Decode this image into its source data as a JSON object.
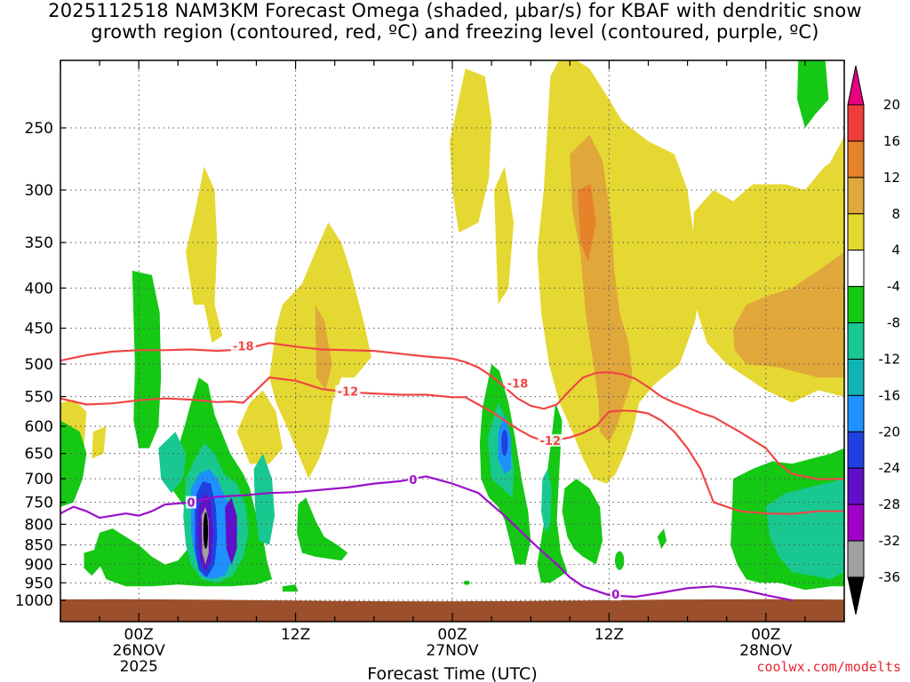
{
  "title": {
    "line1": "2025112518 NAM3KM Forecast Omega (shaded, µbar/s) for KBAF with dendritic snow",
    "line2": "growth region (contoured, red, ºC) and freezing level (contoured, purple, ºC)"
  },
  "credit": "coolwx.com/modelts",
  "chart_data": {
    "type": "heatmap",
    "title": "2025112518 NAM3KM Forecast Omega (shaded, µbar/s) for KBAF with dendritic snow growth region (contoured, red, ºC) and freezing level (contoured, purple, ºC)",
    "xlabel": "Forecast Time (UTC)",
    "ylabel": "",
    "x_range_hours": [
      -6,
      54
    ],
    "y_range_hpa": [
      1000,
      200
    ],
    "y_scale": "log",
    "y_ticks": [
      250,
      300,
      350,
      400,
      450,
      500,
      550,
      600,
      650,
      700,
      750,
      800,
      850,
      900,
      950,
      1000
    ],
    "x_ticks": [
      {
        "hour": 0,
        "lines": [
          "00Z",
          "26NOV",
          "2025"
        ]
      },
      {
        "hour": 12,
        "lines": [
          "12Z"
        ]
      },
      {
        "hour": 24,
        "lines": [
          "00Z",
          "27NOV"
        ]
      },
      {
        "hour": 36,
        "lines": [
          "12Z"
        ]
      },
      {
        "hour": 48,
        "lines": [
          "00Z",
          "28NOV"
        ]
      }
    ],
    "grid": true,
    "colorbar": {
      "levels": [
        20,
        16,
        12,
        8,
        4,
        -4,
        -8,
        -12,
        -16,
        -20,
        -24,
        -28,
        -32,
        -36
      ],
      "bands": [
        {
          "from": 16,
          "to": 20,
          "color": "#f03c3c"
        },
        {
          "from": 12,
          "to": 16,
          "color": "#e6822a"
        },
        {
          "from": 8,
          "to": 12,
          "color": "#e0a83a"
        },
        {
          "from": 4,
          "to": 8,
          "color": "#e6d832"
        },
        {
          "from": -4,
          "to": 4,
          "color": "#ffffff"
        },
        {
          "from": -8,
          "to": -4,
          "color": "#14c814"
        },
        {
          "from": -12,
          "to": -8,
          "color": "#18c890"
        },
        {
          "from": -16,
          "to": -12,
          "color": "#10b4b4"
        },
        {
          "from": -20,
          "to": -16,
          "color": "#1e90ff"
        },
        {
          "from": -24,
          "to": -20,
          "color": "#2040e0"
        },
        {
          "from": -28,
          "to": -24,
          "color": "#6010c8"
        },
        {
          "from": -32,
          "to": -28,
          "color": "#a000c8"
        },
        {
          "from": -36,
          "to": -32,
          "color": "#a0a0a0"
        }
      ],
      "top_arrow_color": "#e6007e",
      "bottom_arrow_color": "#000000"
    },
    "ground_color": "#9b4f2b",
    "shaded_regions": [
      {
        "name": "upward-cell-26nov-06z",
        "value_range": [
          -8,
          -4
        ],
        "color": "#14c814",
        "t": [
          -2,
          10
        ],
        "p": [
          490,
          975
        ]
      },
      {
        "name": "upward-core-26nov-06z",
        "value_range": [
          -36,
          -20
        ],
        "color": "#2040e0",
        "t": [
          4.5,
          8
        ],
        "p": [
          680,
          930
        ]
      },
      {
        "name": "subsidence-26nov-14z",
        "value_range": [
          4,
          8
        ],
        "color": "#e6d832",
        "t": [
          10,
          18
        ],
        "p": [
          345,
          730
        ]
      },
      {
        "name": "upward-cell-27nov-04z",
        "value_range": [
          -20,
          -4
        ],
        "color": "#1e90ff",
        "t": [
          26,
          31
        ],
        "p": [
          490,
          960
        ]
      },
      {
        "name": "subsidence-27nov-12z",
        "value_range": [
          4,
          16
        ],
        "color": "#e6822a",
        "t": [
          31,
          41
        ],
        "p": [
          215,
          700
        ]
      },
      {
        "name": "subsidence-28nov",
        "value_range": [
          4,
          12
        ],
        "color": "#e0a83a",
        "t": [
          42,
          54
        ],
        "p": [
          290,
          560
        ]
      },
      {
        "name": "upward-28nov-low",
        "value_range": [
          -12,
          -4
        ],
        "color": "#18c890",
        "t": [
          45,
          54
        ],
        "p": [
          660,
          955
        ]
      }
    ],
    "series": [
      {
        "name": "-18C isotherm (dendritic growth top)",
        "color": "#f04646",
        "label": "-18",
        "x": [
          -6,
          -4,
          -2,
          0,
          2,
          4,
          6,
          8,
          10,
          12,
          14,
          16,
          18,
          20,
          22,
          24,
          25,
          26,
          27,
          28,
          29,
          30,
          31,
          32,
          33,
          34,
          35,
          36,
          37,
          38,
          39,
          40,
          41,
          42,
          43,
          44,
          46,
          48,
          49,
          50,
          52,
          54
        ],
        "y": [
          495,
          487,
          482,
          480,
          480,
          479,
          481,
          479,
          470,
          475,
          479,
          480,
          481,
          485,
          489,
          492,
          497,
          505,
          518,
          535,
          553,
          565,
          570,
          563,
          540,
          520,
          513,
          512,
          515,
          522,
          535,
          550,
          560,
          568,
          577,
          584,
          610,
          640,
          670,
          690,
          701,
          700
        ]
      },
      {
        "name": "-12C isotherm (dendritic growth bottom)",
        "color": "#f04646",
        "label": "-12",
        "x": [
          -6,
          -4,
          -2,
          0,
          2,
          4,
          6,
          7,
          8,
          10,
          12,
          14,
          16,
          18,
          20,
          22,
          24,
          25,
          26,
          27,
          28,
          29,
          30,
          31,
          32,
          33,
          34,
          35,
          36,
          37,
          38,
          39,
          40,
          41,
          42,
          43,
          44,
          45,
          46,
          48,
          50,
          52,
          54
        ],
        "y": [
          553,
          563,
          561,
          556,
          553,
          555,
          559,
          558,
          560,
          520,
          525,
          538,
          543,
          545,
          547,
          547,
          551,
          551,
          563,
          575,
          590,
          605,
          618,
          627,
          625,
          620,
          612,
          600,
          575,
          573,
          574,
          578,
          590,
          610,
          640,
          680,
          750,
          760,
          770,
          775,
          776,
          770,
          770
        ]
      },
      {
        "name": "0C isotherm (freezing level)",
        "color": "#9a10c8",
        "label": "0",
        "x": [
          -6,
          -5,
          -4,
          -3,
          -2,
          -1,
          0,
          1,
          2,
          4,
          6,
          8,
          10,
          12,
          14,
          16,
          18,
          20,
          22,
          24,
          25,
          26,
          27,
          28,
          29,
          30,
          31,
          32,
          33,
          34,
          36,
          38,
          40,
          42,
          44,
          46,
          48,
          50
        ],
        "y": [
          775,
          760,
          770,
          785,
          780,
          775,
          780,
          770,
          755,
          750,
          738,
          735,
          730,
          728,
          723,
          718,
          710,
          705,
          695,
          710,
          720,
          730,
          755,
          780,
          810,
          840,
          870,
          900,
          935,
          960,
          985,
          990,
          978,
          965,
          960,
          968,
          985,
          1000
        ]
      }
    ],
    "contour_labels": [
      {
        "text": "-18",
        "t": 8,
        "p": 475,
        "color": "#f04646"
      },
      {
        "text": "-12",
        "t": 16,
        "p": 543,
        "color": "#f04646"
      },
      {
        "text": "-18",
        "t": 29,
        "p": 530,
        "color": "#f04646"
      },
      {
        "text": "-12",
        "t": 31.5,
        "p": 627,
        "color": "#f04646"
      },
      {
        "text": "0",
        "t": 4,
        "p": 752,
        "color": "#9a10c8"
      },
      {
        "text": "0",
        "t": 21,
        "p": 703,
        "color": "#9a10c8"
      },
      {
        "text": "0",
        "t": 36.5,
        "p": 985,
        "color": "#9a10c8"
      }
    ]
  }
}
